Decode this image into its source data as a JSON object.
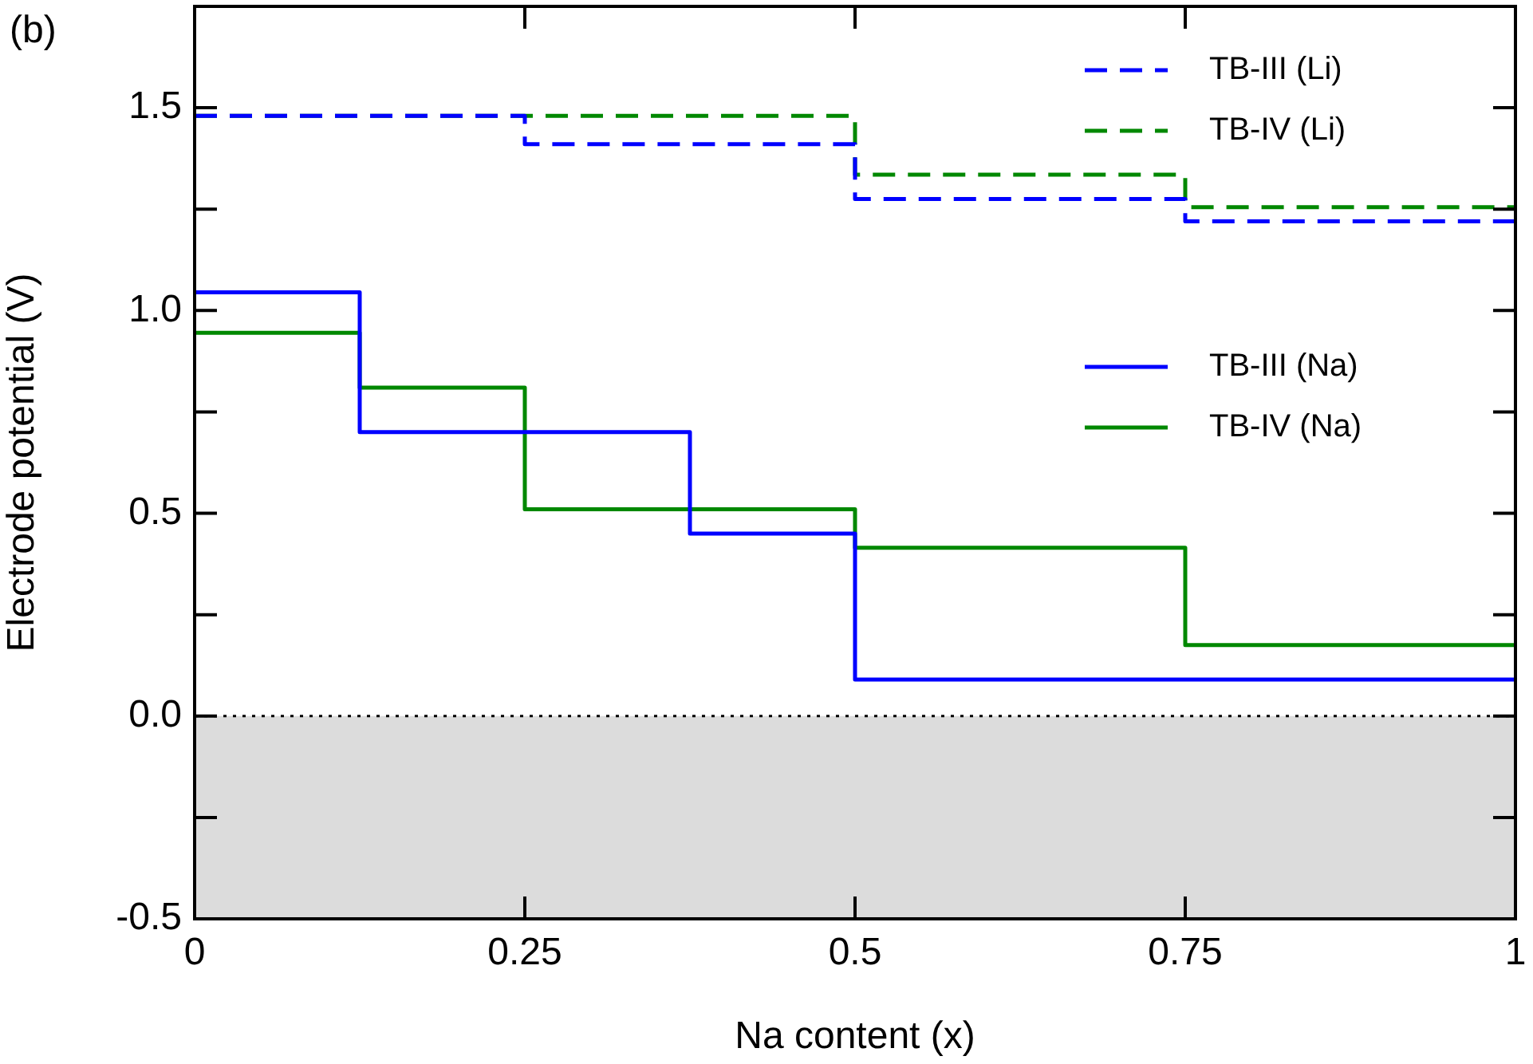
{
  "chart_data": {
    "type": "step",
    "xlabel": "Na content (x)",
    "ylabel": "Electrode potential (V)",
    "annotations": [
      "(b)"
    ],
    "xlim": [
      0,
      1
    ],
    "xticks": [
      0,
      0.25,
      0.5,
      0.75,
      1
    ],
    "ylim": [
      -0.5,
      1.75
    ],
    "yticks": [
      {
        "value": -0.5,
        "label": "-0.5"
      },
      {
        "value": -0.25,
        "label": null
      },
      {
        "value": 0,
        "label": "0.0"
      },
      {
        "value": 0.25,
        "label": null
      },
      {
        "value": 0.5,
        "label": "0.5"
      },
      {
        "value": 0.75,
        "label": null
      },
      {
        "value": 1,
        "label": "1.0"
      },
      {
        "value": 1.25,
        "label": null
      },
      {
        "value": 1.5,
        "label": "1.5"
      }
    ],
    "grid": false,
    "legend": "top right",
    "marker": "none",
    "series": [
      {
        "name": "TB-III (Li)",
        "color": "#0000ff",
        "line_style": "dashed",
        "x": [
          0,
          0.25,
          0.5,
          0.75,
          1
        ],
        "values": [
          1.48,
          1.41,
          1.275,
          1.22,
          1.22
        ]
      },
      {
        "name": "TB-IV (Li)",
        "color": "#008800",
        "line_style": "dashed",
        "x": [
          0,
          0.25,
          0.5,
          0.75,
          1
        ],
        "values": [
          1.48,
          1.48,
          1.335,
          1.255,
          1.255
        ]
      },
      {
        "name": "TB-III (Na)",
        "color": "#0000ff",
        "line_style": "solid",
        "x": [
          0,
          0.125,
          0.375,
          0.5,
          1
        ],
        "values": [
          1.045,
          0.7,
          0.45,
          0.09,
          0.09
        ]
      },
      {
        "name": "TB-IV (Na)",
        "color": "#008800",
        "line_style": "solid",
        "x": [
          0,
          0.125,
          0.25,
          0.5,
          0.75,
          1
        ],
        "values": [
          0.945,
          0.81,
          0.51,
          0.415,
          0.175,
          0.175
        ]
      }
    ],
    "ref_lines": [
      {
        "axis": "y",
        "value": 0,
        "color": "#000000",
        "line_style": "dotted"
      }
    ],
    "bands": [
      {
        "axis": "y",
        "from": -0.5,
        "to": 0,
        "color": "#dcdcdc"
      }
    ]
  }
}
